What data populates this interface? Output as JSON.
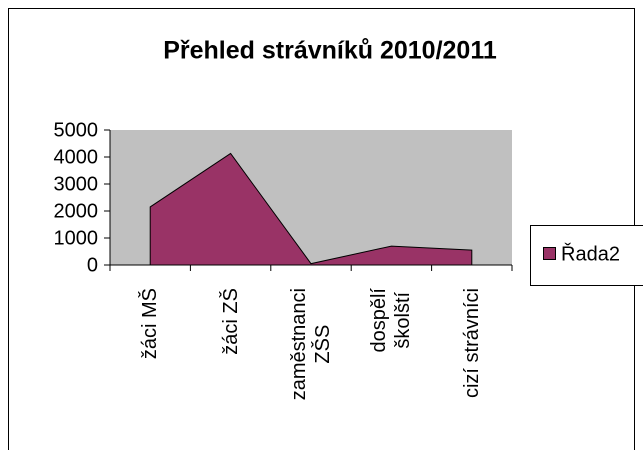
{
  "chart_data": {
    "type": "area",
    "title": "Přehled strávníků 2010/2011",
    "categories": [
      "žáci MŠ",
      "žáci ZŠ",
      "zaměstnanci\nZŠS",
      "dospělí\nškolští",
      "cizí strávníci"
    ],
    "series": [
      {
        "name": "Řada2",
        "color": "#993366",
        "values": [
          2150,
          4130,
          50,
          700,
          550
        ]
      }
    ],
    "ylim": [
      0,
      5000
    ],
    "yticks": [
      0,
      1000,
      2000,
      3000,
      4000,
      5000
    ],
    "plot_background": "#c0c0c0",
    "legend": "right"
  }
}
